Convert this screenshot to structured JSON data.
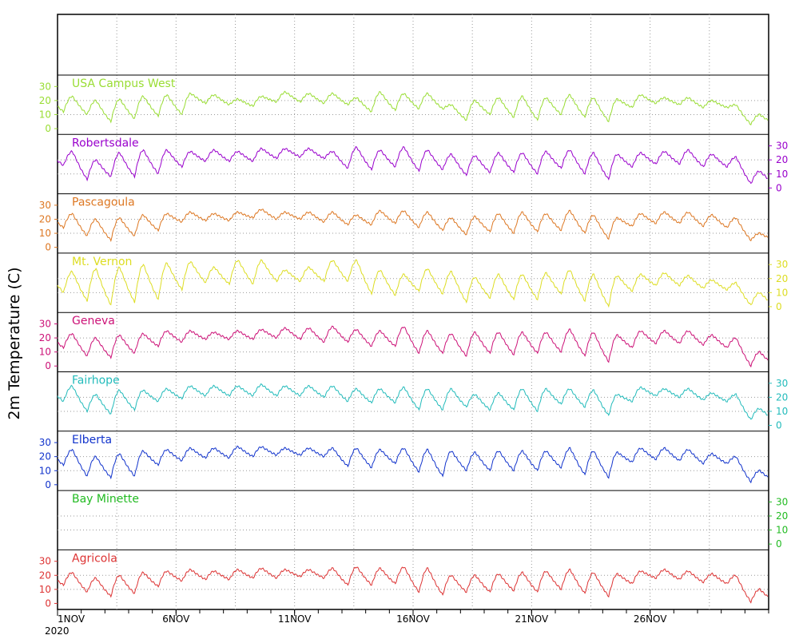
{
  "chart_data": {
    "type": "line",
    "ylabel": "2m Temperature (C)",
    "x_range": [
      "2020-11-01",
      "2020-11-30"
    ],
    "y_range_per_panel": [
      -3,
      37
    ],
    "y_ticks": [
      "0",
      "10",
      "20",
      "30"
    ],
    "x_ticks": [
      {
        "date": "2020-11-01",
        "label": "1NOV"
      },
      {
        "date": "2020-11-06",
        "label": "6NOV"
      },
      {
        "date": "2020-11-11",
        "label": "11NOV"
      },
      {
        "date": "2020-11-16",
        "label": "16NOV"
      },
      {
        "date": "2020-11-21",
        "label": "21NOV"
      },
      {
        "date": "2020-11-26",
        "label": "26NOV"
      }
    ],
    "year_label": "2020",
    "grid": true,
    "series": [
      {
        "name": "USA Campus West",
        "color": "#99dd33",
        "axis_side": "left",
        "has_data": true,
        "daily_max": [
          23,
          20,
          21,
          23,
          24,
          25,
          24,
          21,
          23,
          26,
          25,
          25,
          22,
          26,
          25,
          25,
          17,
          20,
          22,
          23,
          22,
          24,
          22,
          21,
          24,
          22,
          22,
          20,
          17,
          10
        ],
        "daily_min": [
          12,
          10,
          5,
          7,
          9,
          10,
          18,
          17,
          16,
          19,
          19,
          18,
          17,
          12,
          13,
          14,
          14,
          6,
          10,
          8,
          6,
          10,
          8,
          5,
          15,
          18,
          17,
          15,
          15,
          3
        ]
      },
      {
        "name": "Robertsdale",
        "color": "#9900cc",
        "axis_side": "right",
        "has_data": true,
        "daily_max": [
          26,
          20,
          25,
          27,
          27,
          26,
          27,
          26,
          28,
          28,
          28,
          26,
          29,
          27,
          29,
          27,
          24,
          23,
          25,
          25,
          26,
          27,
          25,
          24,
          25,
          26,
          27,
          24,
          22,
          12
        ],
        "daily_min": [
          16,
          6,
          8,
          8,
          10,
          15,
          19,
          19,
          19,
          21,
          22,
          21,
          14,
          13,
          15,
          12,
          13,
          9,
          11,
          11,
          10,
          14,
          10,
          6,
          15,
          17,
          17,
          15,
          15,
          3
        ]
      },
      {
        "name": "Pascagoula",
        "color": "#dd7722",
        "axis_side": "left",
        "has_data": true,
        "daily_max": [
          24,
          20,
          21,
          23,
          24,
          25,
          24,
          25,
          27,
          25,
          25,
          25,
          23,
          26,
          26,
          25,
          21,
          22,
          24,
          25,
          24,
          26,
          23,
          21,
          24,
          25,
          25,
          23,
          21,
          10
        ],
        "daily_min": [
          14,
          8,
          5,
          8,
          12,
          18,
          19,
          19,
          21,
          20,
          20,
          18,
          16,
          16,
          17,
          14,
          12,
          9,
          11,
          10,
          11,
          12,
          10,
          6,
          15,
          17,
          17,
          15,
          14,
          5
        ]
      },
      {
        "name": "Mt. Vernon",
        "color": "#dddd22",
        "axis_side": "right",
        "has_data": true,
        "daily_max": [
          25,
          27,
          28,
          30,
          31,
          32,
          28,
          33,
          33,
          26,
          28,
          33,
          33,
          26,
          23,
          27,
          25,
          21,
          23,
          23,
          24,
          26,
          23,
          22,
          23,
          24,
          22,
          19,
          17,
          10
        ],
        "daily_min": [
          10,
          4,
          1,
          3,
          5,
          12,
          17,
          16,
          16,
          18,
          18,
          18,
          18,
          9,
          8,
          11,
          9,
          3,
          6,
          5,
          5,
          9,
          4,
          0,
          11,
          15,
          15,
          13,
          12,
          1
        ]
      },
      {
        "name": "Geneva",
        "color": "#cc1177",
        "axis_side": "left",
        "has_data": true,
        "daily_max": [
          23,
          20,
          22,
          23,
          25,
          25,
          24,
          25,
          26,
          27,
          27,
          28,
          26,
          25,
          28,
          25,
          23,
          24,
          24,
          24,
          24,
          26,
          24,
          22,
          25,
          25,
          25,
          22,
          20,
          10
        ],
        "daily_min": [
          13,
          7,
          6,
          9,
          14,
          17,
          19,
          19,
          19,
          20,
          19,
          17,
          17,
          14,
          14,
          9,
          9,
          7,
          9,
          8,
          9,
          10,
          7,
          3,
          13,
          16,
          16,
          15,
          13,
          0
        ]
      },
      {
        "name": "Fairhope",
        "color": "#22bbbb",
        "axis_side": "right",
        "has_data": true,
        "daily_max": [
          28,
          22,
          25,
          25,
          26,
          28,
          28,
          28,
          29,
          28,
          28,
          28,
          26,
          26,
          27,
          26,
          26,
          22,
          23,
          26,
          26,
          26,
          25,
          22,
          27,
          26,
          26,
          23,
          22,
          12
        ],
        "daily_min": [
          17,
          10,
          8,
          11,
          17,
          19,
          21,
          21,
          21,
          21,
          21,
          20,
          17,
          16,
          16,
          11,
          11,
          13,
          11,
          11,
          10,
          15,
          13,
          7,
          17,
          21,
          20,
          18,
          17,
          4
        ]
      },
      {
        "name": "Elberta",
        "color": "#1133cc",
        "axis_side": "left",
        "has_data": true,
        "daily_max": [
          25,
          20,
          22,
          24,
          25,
          26,
          26,
          27,
          27,
          26,
          26,
          26,
          26,
          25,
          26,
          25,
          24,
          23,
          24,
          24,
          24,
          26,
          24,
          23,
          26,
          26,
          25,
          22,
          20,
          10
        ],
        "daily_min": [
          14,
          6,
          5,
          6,
          14,
          17,
          19,
          19,
          20,
          21,
          21,
          20,
          13,
          12,
          15,
          9,
          6,
          10,
          10,
          10,
          10,
          12,
          7,
          5,
          16,
          18,
          17,
          15,
          15,
          2
        ]
      },
      {
        "name": "Bay Minette",
        "color": "#22bb22",
        "axis_side": "right",
        "has_data": false,
        "daily_max": [],
        "daily_min": []
      },
      {
        "name": "Agricola",
        "color": "#dd3333",
        "axis_side": "left",
        "has_data": true,
        "daily_max": [
          22,
          18,
          20,
          22,
          23,
          24,
          23,
          24,
          25,
          24,
          24,
          25,
          26,
          25,
          26,
          25,
          20,
          20,
          21,
          22,
          23,
          24,
          22,
          21,
          23,
          24,
          23,
          21,
          20,
          10
        ],
        "daily_min": [
          13,
          8,
          5,
          7,
          12,
          16,
          17,
          17,
          18,
          18,
          19,
          18,
          13,
          13,
          14,
          8,
          6,
          8,
          8,
          9,
          8,
          10,
          7,
          5,
          14,
          18,
          17,
          15,
          14,
          1
        ]
      }
    ]
  }
}
